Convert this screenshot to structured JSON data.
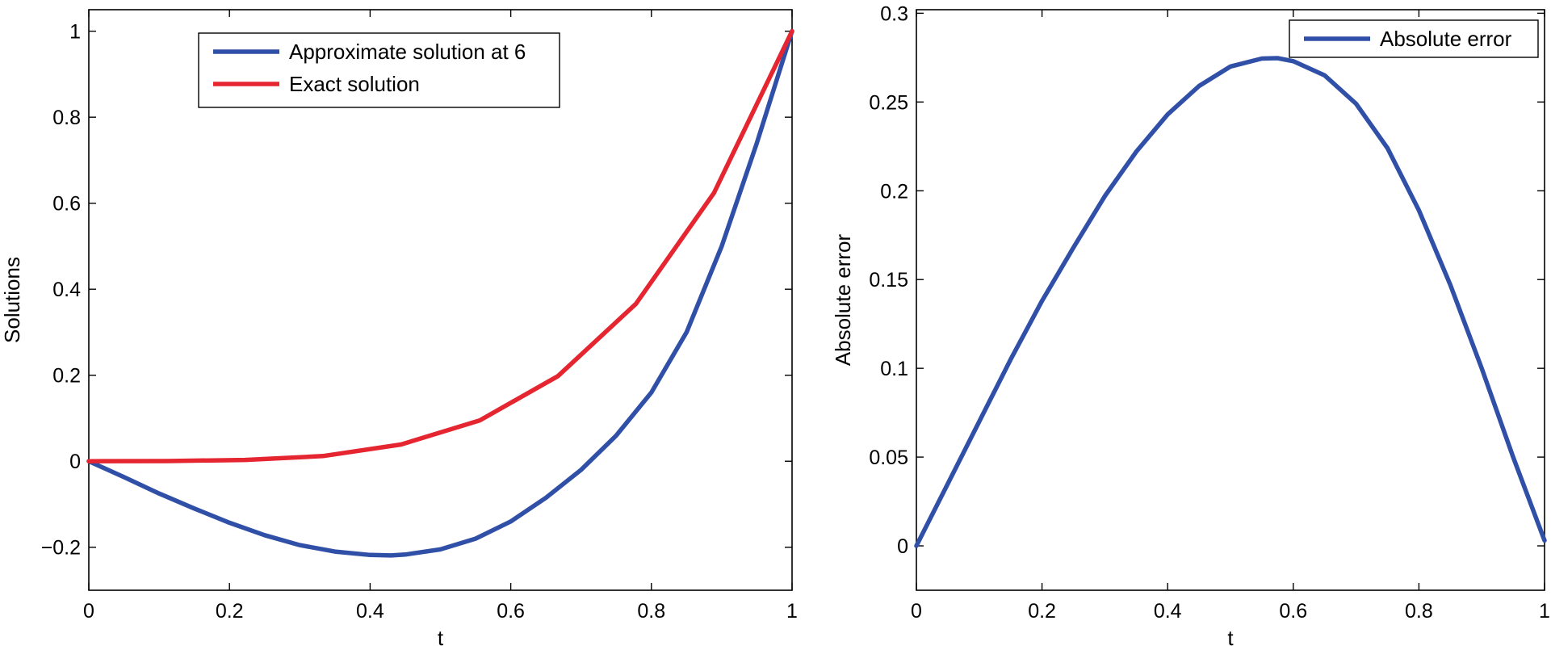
{
  "chart_data": [
    {
      "type": "line",
      "xlabel": "t",
      "ylabel": "Solutions",
      "xlim": [
        0,
        1
      ],
      "ylim": [
        -0.3,
        1.05
      ],
      "xticks": [
        0,
        0.2,
        0.4,
        0.6,
        0.8,
        1
      ],
      "xtick_labels": [
        "0",
        "0.2",
        "0.4",
        "0.6",
        "0.8",
        "1"
      ],
      "yticks": [
        -0.2,
        0,
        0.2,
        0.4,
        0.6,
        0.8,
        1
      ],
      "ytick_labels": [
        "−0.2",
        "0",
        "0.2",
        "0.4",
        "0.6",
        "0.8",
        "1"
      ],
      "legend_position": "top-center",
      "series": [
        {
          "name": "Approximate solution at 6",
          "color": "#3050a8",
          "x": [
            0,
            0.05,
            0.1,
            0.15,
            0.2,
            0.25,
            0.3,
            0.35,
            0.4,
            0.43,
            0.45,
            0.5,
            0.55,
            0.6,
            0.65,
            0.7,
            0.75,
            0.8,
            0.85,
            0.9,
            0.95,
            1
          ],
          "y": [
            0,
            -0.037,
            -0.075,
            -0.11,
            -0.143,
            -0.172,
            -0.195,
            -0.21,
            -0.218,
            -0.219,
            -0.217,
            -0.205,
            -0.18,
            -0.14,
            -0.085,
            -0.02,
            0.06,
            0.16,
            0.3,
            0.5,
            0.74,
            1
          ]
        },
        {
          "name": "Exact solution",
          "color": "#e52530",
          "x": [
            0,
            0.111,
            0.222,
            0.333,
            0.444,
            0.556,
            0.667,
            0.778,
            0.889,
            1
          ],
          "y": [
            0,
            0.0004,
            0.003,
            0.012,
            0.039,
            0.095,
            0.198,
            0.366,
            0.624,
            1
          ]
        }
      ]
    },
    {
      "type": "line",
      "xlabel": "t",
      "ylabel": "Absolute error",
      "xlim": [
        0,
        1
      ],
      "ylim": [
        -0.025,
        0.302
      ],
      "xticks": [
        0,
        0.2,
        0.4,
        0.6,
        0.8,
        1
      ],
      "xtick_labels": [
        "0",
        "0.2",
        "0.4",
        "0.6",
        "0.8",
        "1"
      ],
      "yticks": [
        0,
        0.05,
        0.1,
        0.15,
        0.2,
        0.25,
        0.3
      ],
      "ytick_labels": [
        "0",
        "0.05",
        "0.1",
        "0.15",
        "0.2",
        "0.25",
        "0.3"
      ],
      "legend_position": "top-right",
      "series": [
        {
          "name": "Absolute error",
          "color": "#3050a8",
          "x": [
            0,
            0.05,
            0.1,
            0.15,
            0.2,
            0.25,
            0.3,
            0.35,
            0.4,
            0.45,
            0.5,
            0.55,
            0.575,
            0.6,
            0.65,
            0.7,
            0.75,
            0.8,
            0.85,
            0.9,
            0.95,
            1
          ],
          "y": [
            0,
            0.035,
            0.07,
            0.105,
            0.138,
            0.168,
            0.197,
            0.222,
            0.243,
            0.259,
            0.27,
            0.2745,
            0.2747,
            0.273,
            0.265,
            0.249,
            0.224,
            0.189,
            0.147,
            0.1,
            0.05,
            0.003
          ]
        }
      ]
    }
  ]
}
